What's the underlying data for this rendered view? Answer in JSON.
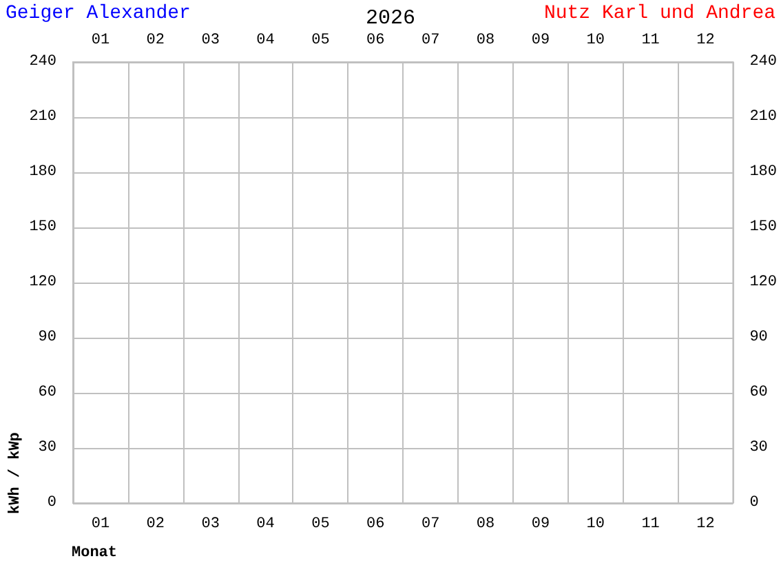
{
  "chart_data": {
    "type": "bar",
    "title": "2026",
    "annotations": [
      "Geiger Alexander",
      "Nutz Karl und Andrea"
    ],
    "xlabel": "Monat",
    "ylabel": "kWh / kWp",
    "categories": [
      "01",
      "02",
      "03",
      "04",
      "05",
      "06",
      "07",
      "08",
      "09",
      "10",
      "11",
      "12"
    ],
    "values": [
      null,
      null,
      null,
      null,
      null,
      null,
      null,
      null,
      null,
      null,
      null,
      null
    ],
    "ylim": [
      0,
      240
    ],
    "yticks": [
      0,
      30,
      60,
      90,
      120,
      150,
      180,
      210,
      240
    ],
    "y2lim": [
      0,
      240
    ],
    "y2ticks": [
      0,
      30,
      60,
      90,
      120,
      150,
      180,
      210,
      240
    ],
    "grid": true
  }
}
